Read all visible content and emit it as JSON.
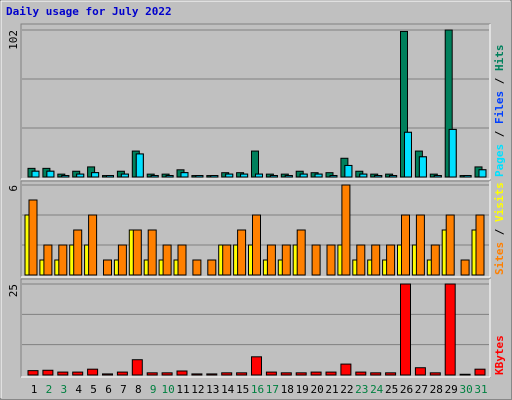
{
  "chart_data": [
    {
      "type": "bar",
      "title": "Daily usage for July 2022",
      "ylim": [
        0,
        102
      ],
      "yticks": [
        102
      ],
      "legend_separator": "/",
      "series": [
        {
          "name": "Hits",
          "color": "#00805c",
          "values": [
            6,
            6,
            2,
            4,
            7,
            1,
            4,
            18,
            2,
            2,
            5,
            1,
            1,
            3,
            3,
            18,
            2,
            2,
            4,
            3,
            3,
            13,
            4,
            2,
            2,
            101,
            18,
            2,
            102,
            1,
            7
          ]
        },
        {
          "name": "Files",
          "color": "#0040ff",
          "values": [
            4,
            4,
            1,
            2,
            3,
            1,
            2,
            16,
            1,
            1,
            3,
            1,
            1,
            2,
            2,
            2,
            1,
            1,
            2,
            2,
            1,
            8,
            2,
            1,
            1,
            31,
            14,
            1,
            33,
            1,
            5
          ]
        },
        {
          "name": "Pages",
          "color": "#00e0ff",
          "values": [
            4,
            4,
            1,
            2,
            3,
            1,
            2,
            16,
            1,
            1,
            3,
            1,
            1,
            2,
            2,
            2,
            1,
            1,
            2,
            2,
            1,
            8,
            2,
            1,
            1,
            31,
            14,
            1,
            33,
            1,
            5
          ]
        }
      ]
    },
    {
      "type": "bar",
      "ylim": [
        0,
        6
      ],
      "yticks": [
        6
      ],
      "legend_separator": "/",
      "series": [
        {
          "name": "Visits",
          "color": "#ffff00",
          "values": [
            4,
            1,
            1,
            2,
            2,
            0,
            1,
            3,
            1,
            1,
            1,
            0,
            0,
            2,
            2,
            2,
            1,
            1,
            2,
            0,
            0,
            2,
            1,
            1,
            1,
            2,
            2,
            1,
            3,
            0,
            3
          ]
        },
        {
          "name": "Sites",
          "color": "#ff8000",
          "values": [
            5,
            2,
            2,
            3,
            4,
            1,
            2,
            3,
            3,
            2,
            2,
            1,
            1,
            2,
            3,
            4,
            2,
            2,
            3,
            2,
            2,
            6,
            2,
            2,
            2,
            4,
            4,
            2,
            4,
            1,
            4
          ]
        }
      ]
    },
    {
      "type": "bar",
      "ylim": [
        0,
        25
      ],
      "yticks": [
        25
      ],
      "categories": [
        "1",
        "2",
        "3",
        "4",
        "5",
        "6",
        "7",
        "8",
        "9",
        "10",
        "11",
        "12",
        "13",
        "14",
        "15",
        "16",
        "17",
        "18",
        "19",
        "20",
        "21",
        "22",
        "23",
        "24",
        "25",
        "26",
        "27",
        "28",
        "29",
        "30",
        "31"
      ],
      "category_colors": [
        "#000000",
        "#008040",
        "#008040",
        "#000000",
        "#000000",
        "#000000",
        "#000000",
        "#000000",
        "#008040",
        "#008040",
        "#000000",
        "#000000",
        "#000000",
        "#000000",
        "#000000",
        "#008040",
        "#008040",
        "#000000",
        "#000000",
        "#000000",
        "#000000",
        "#000000",
        "#008040",
        "#008040",
        "#000000",
        "#000000",
        "#000000",
        "#000000",
        "#000000",
        "#008040",
        "#008040"
      ],
      "series": [
        {
          "name": "KBytes",
          "color": "#ff0000",
          "values": [
            1.2,
            1.3,
            0.8,
            0.8,
            1.6,
            0.3,
            0.8,
            4.2,
            0.6,
            0.6,
            1.1,
            0.3,
            0.3,
            0.6,
            0.6,
            5,
            0.8,
            0.6,
            0.6,
            0.8,
            0.8,
            3,
            0.8,
            0.6,
            0.6,
            25,
            2,
            0.6,
            25,
            0.2,
            1.6
          ]
        }
      ]
    }
  ]
}
